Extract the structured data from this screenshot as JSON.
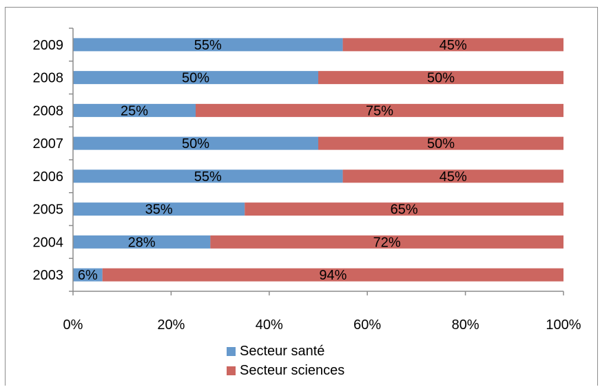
{
  "chart_data": {
    "type": "bar",
    "orientation": "horizontal",
    "stacked": "percent",
    "categories": [
      "2009",
      "2008",
      "2008",
      "2007",
      "2006",
      "2005",
      "2004",
      "2003"
    ],
    "series": [
      {
        "name": "Secteur santé",
        "color": "#6699cc",
        "values": [
          55,
          50,
          25,
          50,
          55,
          35,
          28,
          6
        ],
        "labels": [
          "55%",
          "50%",
          "25%",
          "50%",
          "55%",
          "35%",
          "28%",
          "6%"
        ]
      },
      {
        "name": "Secteur sciences",
        "color": "#cc6660",
        "values": [
          45,
          50,
          75,
          50,
          45,
          65,
          72,
          94
        ],
        "labels": [
          "45%",
          "50%",
          "75%",
          "50%",
          "45%",
          "65%",
          "72%",
          "94%"
        ]
      }
    ],
    "x_ticks": [
      "0%",
      "20%",
      "40%",
      "60%",
      "80%",
      "100%"
    ],
    "xlim": [
      0,
      100
    ],
    "grid": false,
    "legend_position": "bottom"
  }
}
